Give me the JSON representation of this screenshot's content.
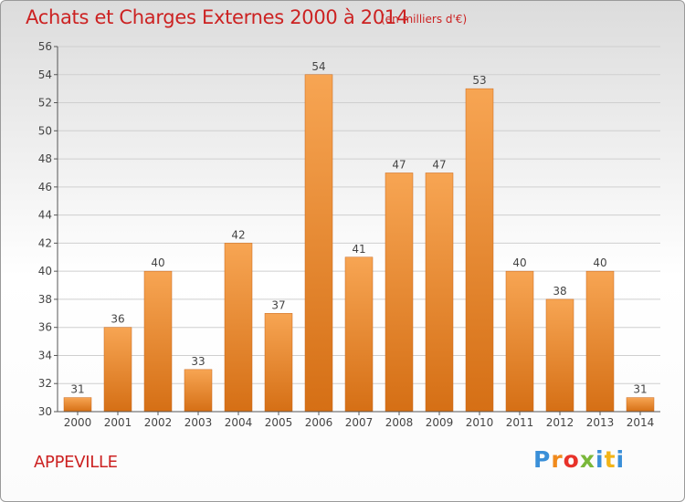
{
  "header": {
    "title": "Achats et Charges Externes 2000 à 2014",
    "unit": "(en milliers d'€)"
  },
  "footer": {
    "commune": "APPEVILLE",
    "logo_letters": [
      "P",
      "r",
      "o",
      "x",
      "i",
      "t",
      "i"
    ]
  },
  "colors": {
    "title": "#cc2222",
    "bar_light": "#f7a553",
    "bar_dark": "#d56f15",
    "grid": "#cfcfcf",
    "axis": "#555555",
    "logo": [
      "#3a8fd8",
      "#f08a1c",
      "#e8322a",
      "#7ab83a",
      "#3a8fd8",
      "#f2b418",
      "#3a8fd8"
    ]
  },
  "chart_data": {
    "type": "bar",
    "categories": [
      "2000",
      "2001",
      "2002",
      "2003",
      "2004",
      "2005",
      "2006",
      "2007",
      "2008",
      "2009",
      "2010",
      "2011",
      "2012",
      "2013",
      "2014"
    ],
    "values": [
      31,
      36,
      40,
      33,
      42,
      37,
      54,
      41,
      47,
      47,
      53,
      40,
      38,
      40,
      31
    ],
    "title": "Achats et Charges Externes 2000 à 2014",
    "xlabel": "",
    "ylabel": "",
    "ylim": [
      30,
      56
    ],
    "yticks": [
      30,
      32,
      34,
      36,
      38,
      40,
      42,
      44,
      46,
      48,
      50,
      52,
      54,
      56
    ],
    "grid": true,
    "legend": "none"
  }
}
